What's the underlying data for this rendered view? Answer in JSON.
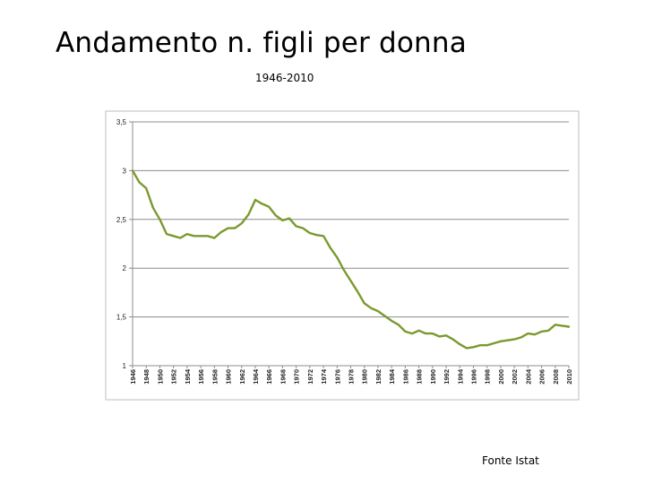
{
  "slide": {
    "title": "Andamento n. figli per donna",
    "subtitle": "1946-2010",
    "source": "Fonte Istat"
  },
  "chart_data": {
    "type": "line",
    "title": "",
    "xlabel": "",
    "ylabel": "",
    "ylim": [
      1,
      3.5
    ],
    "yticks": [
      1,
      1.5,
      2,
      2.5,
      3,
      3.5
    ],
    "ytick_labels": [
      "1",
      "1,5",
      "2",
      "2,5",
      "3",
      "3,5"
    ],
    "xticks": [
      "1946",
      "1948",
      "1950",
      "1952",
      "1954",
      "1956",
      "1958",
      "1960",
      "1962",
      "1964",
      "1966",
      "1968",
      "1970",
      "1972",
      "1974",
      "1976",
      "1978",
      "1980",
      "1982",
      "1984",
      "1986",
      "1988",
      "1990",
      "1992",
      "1994",
      "1996",
      "1998",
      "2000",
      "2002",
      "2004",
      "2006",
      "2008",
      "2010"
    ],
    "grid": true,
    "line_color": "#7a9a2e",
    "x": [
      1946,
      1947,
      1948,
      1949,
      1950,
      1951,
      1952,
      1953,
      1954,
      1955,
      1956,
      1957,
      1958,
      1959,
      1960,
      1961,
      1962,
      1963,
      1964,
      1965,
      1966,
      1967,
      1968,
      1969,
      1970,
      1971,
      1972,
      1973,
      1974,
      1975,
      1976,
      1977,
      1978,
      1979,
      1980,
      1981,
      1982,
      1983,
      1984,
      1985,
      1986,
      1987,
      1988,
      1989,
      1990,
      1991,
      1992,
      1993,
      1994,
      1995,
      1996,
      1997,
      1998,
      1999,
      2000,
      2001,
      2002,
      2003,
      2004,
      2005,
      2006,
      2007,
      2008,
      2009,
      2010
    ],
    "values": [
      3.0,
      2.88,
      2.82,
      2.62,
      2.5,
      2.35,
      2.33,
      2.31,
      2.35,
      2.33,
      2.33,
      2.33,
      2.31,
      2.37,
      2.41,
      2.41,
      2.46,
      2.55,
      2.7,
      2.66,
      2.63,
      2.54,
      2.49,
      2.51,
      2.43,
      2.41,
      2.36,
      2.34,
      2.33,
      2.21,
      2.11,
      1.98,
      1.87,
      1.76,
      1.64,
      1.59,
      1.56,
      1.51,
      1.46,
      1.42,
      1.35,
      1.33,
      1.36,
      1.33,
      1.33,
      1.3,
      1.31,
      1.27,
      1.22,
      1.18,
      1.19,
      1.21,
      1.21,
      1.23,
      1.25,
      1.26,
      1.27,
      1.29,
      1.33,
      1.32,
      1.35,
      1.36,
      1.42,
      1.41,
      1.4
    ]
  }
}
